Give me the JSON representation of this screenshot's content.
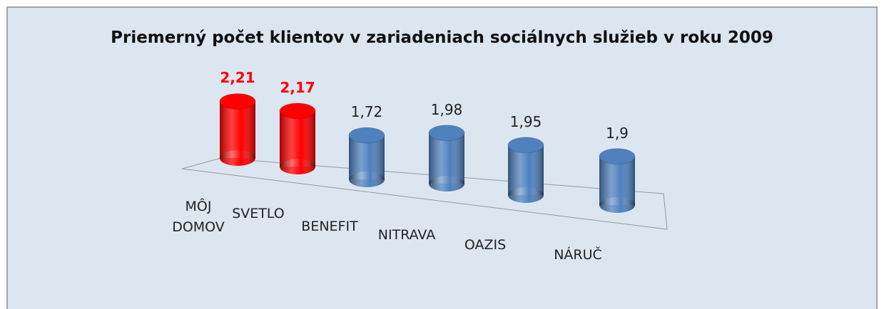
{
  "chart_data": {
    "type": "cylinder-bar",
    "title": "Priemerný počet klientov v zariadeniach sociálnych služieb v roku 2009",
    "categories": [
      "MÔJ DOMOV",
      "SVETLO",
      "BENEFIT",
      "NITRAVA",
      "OAZIS",
      "NÁRUČ"
    ],
    "values": [
      2.21,
      2.17,
      1.72,
      1.98,
      1.95,
      1.9
    ],
    "value_labels": [
      "2,21",
      "2,17",
      "1,72",
      "1,98",
      "1,95",
      "1,9"
    ],
    "colors": [
      "#ff0000",
      "#ff0000",
      "#4f81bd",
      "#4f81bd",
      "#4f81bd",
      "#4f81bd"
    ],
    "value_label_colors": [
      "#ff0000",
      "#ff0000",
      "#222222",
      "#222222",
      "#222222",
      "#222222"
    ],
    "value_label_bold": [
      true,
      true,
      false,
      false,
      false,
      false
    ]
  }
}
